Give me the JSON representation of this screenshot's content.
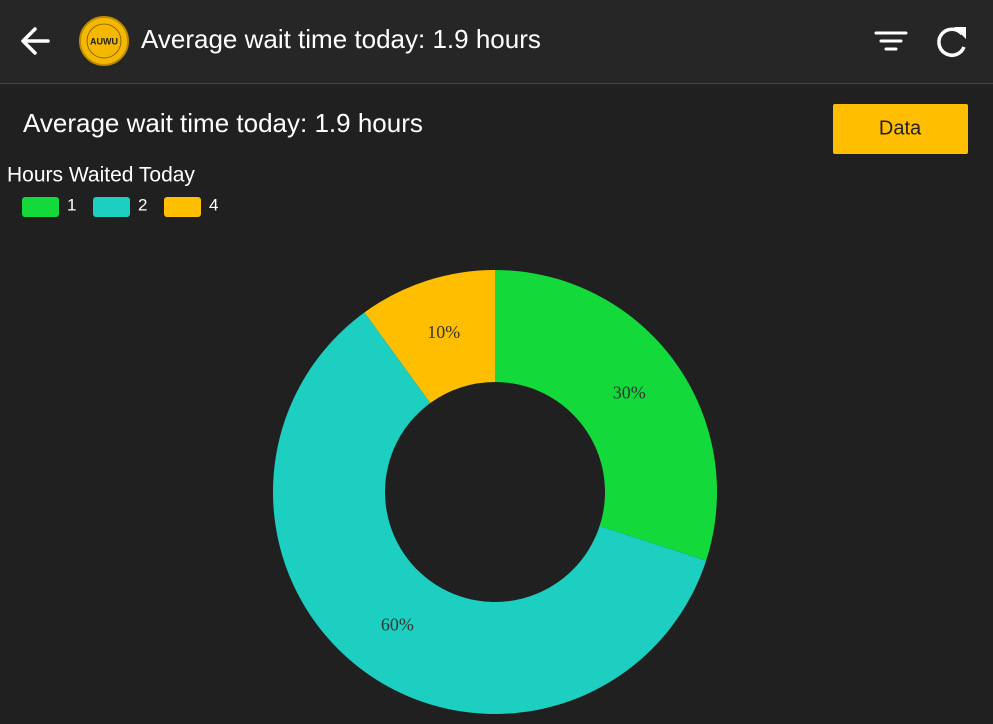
{
  "header": {
    "title": "Average wait time today: 1.9 hours",
    "logo_text": "AUWU"
  },
  "heading": "Average wait time today: 1.9 hours",
  "button": "Data",
  "chart_data": {
    "type": "pie",
    "legend_title": "Hours Waited Today",
    "categories": [
      "1",
      "2",
      "4"
    ],
    "values": [
      30,
      60,
      10
    ],
    "value_labels": [
      "30%",
      "60%",
      "10%"
    ],
    "colors": [
      "#14d93a",
      "#1ccfc0",
      "#ffbf00"
    ],
    "donut": true
  }
}
